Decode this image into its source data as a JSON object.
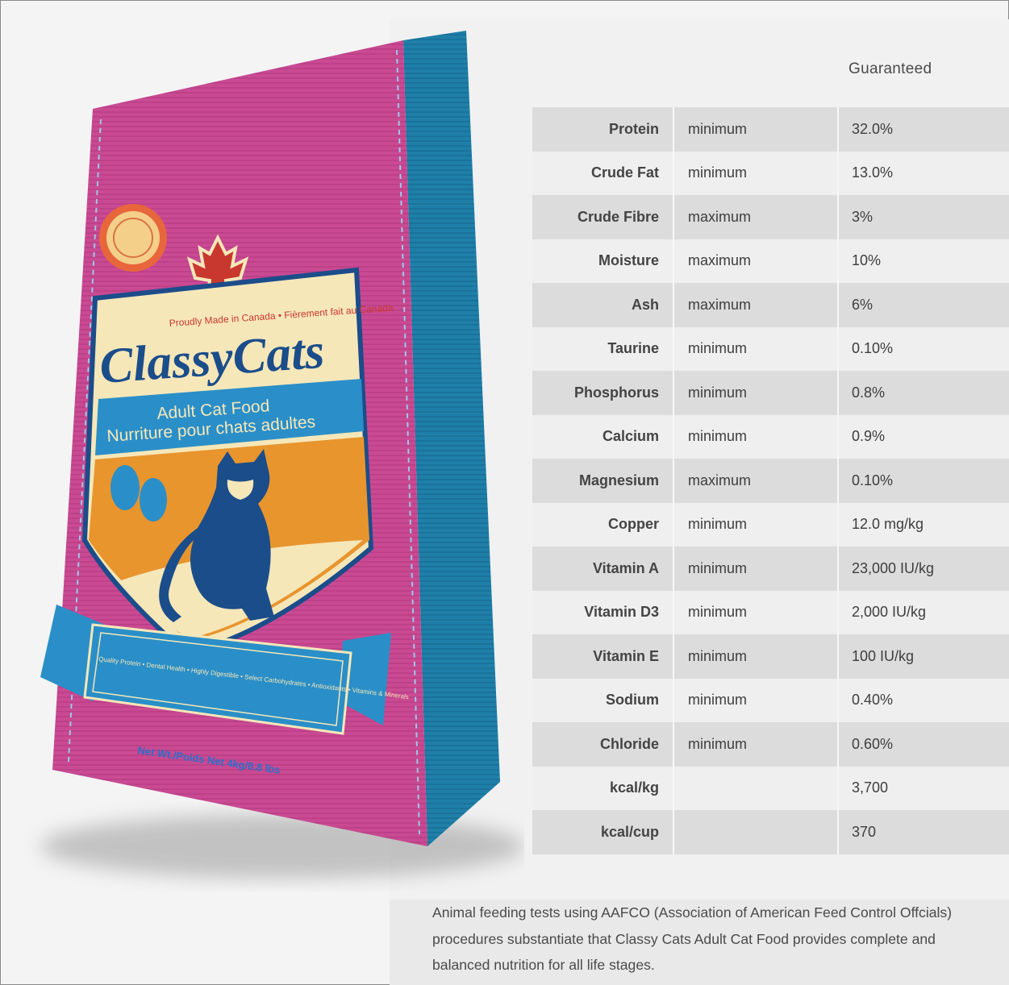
{
  "bag": {
    "brand": "ClassyCats",
    "tagline_top": "Proudly Made in Canada • Fièrement fait au Canada",
    "subtitle_en": "Adult Cat Food",
    "subtitle_fr": "Nurriture pour chats adultes",
    "ribbon_text": "Quality Protein • Dental Health • Highly Digestible • Select Carbohydrates • Antioxidants • Vitamins & Minerals",
    "net_weight": "Net Wt./Poids Net 4kg/8.8 lbs",
    "colors": {
      "bag_front": "#c94a93",
      "bag_side": "#1f7fa8",
      "ribbon": "#2a8fc8",
      "sun": "#e8952e",
      "cream": "#f6e7b9",
      "navy": "#1b4d8a"
    }
  },
  "table": {
    "header": "Guaranteed",
    "rows": [
      {
        "nutrient": "Protein",
        "basis": "minimum",
        "value": "32.0%"
      },
      {
        "nutrient": "Crude Fat",
        "basis": "minimum",
        "value": "13.0%"
      },
      {
        "nutrient": "Crude Fibre",
        "basis": "maximum",
        "value": "3%"
      },
      {
        "nutrient": "Moisture",
        "basis": "maximum",
        "value": "10%"
      },
      {
        "nutrient": "Ash",
        "basis": "maximum",
        "value": "6%"
      },
      {
        "nutrient": "Taurine",
        "basis": "minimum",
        "value": "0.10%"
      },
      {
        "nutrient": "Phosphorus",
        "basis": "minimum",
        "value": "0.8%"
      },
      {
        "nutrient": "Calcium",
        "basis": "minimum",
        "value": "0.9%"
      },
      {
        "nutrient": "Magnesium",
        "basis": "maximum",
        "value": "0.10%"
      },
      {
        "nutrient": "Copper",
        "basis": "minimum",
        "value": "12.0 mg/kg"
      },
      {
        "nutrient": "Vitamin A",
        "basis": "minimum",
        "value": "23,000 IU/kg"
      },
      {
        "nutrient": "Vitamin D3",
        "basis": "minimum",
        "value": "2,000 IU/kg"
      },
      {
        "nutrient": "Vitamin E",
        "basis": "minimum",
        "value": "100 IU/kg"
      },
      {
        "nutrient": "Sodium",
        "basis": "minimum",
        "value": "0.40%"
      },
      {
        "nutrient": "Chloride",
        "basis": "minimum",
        "value": "0.60%"
      },
      {
        "nutrient": "kcal/kg",
        "basis": "",
        "value": "3,700"
      },
      {
        "nutrient": "kcal/cup",
        "basis": "",
        "value": "370"
      }
    ]
  },
  "footnote": "Animal feeding tests using AAFCO (Association of American Feed Control Offcials) procedures substantiate that Classy Cats Adult Cat Food provides complete and balanced nutrition for all life stages."
}
